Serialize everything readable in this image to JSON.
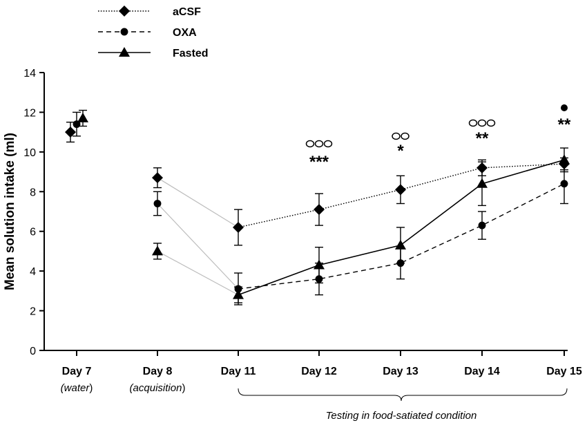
{
  "chart_data": {
    "type": "line",
    "title": "",
    "xlabel": "",
    "ylabel": "Mean solution intake (ml)",
    "ylim": [
      0,
      14
    ],
    "yticks": [
      0,
      2,
      4,
      6,
      8,
      10,
      12,
      14
    ],
    "grid": false,
    "legend_position": "top-left",
    "categories": [
      "Day 7",
      "Day 8",
      "Day 11",
      "Day 12",
      "Day 13",
      "Day 14",
      "Day 15"
    ],
    "category_sublabels": [
      "water",
      "acquisition",
      "",
      "",
      "",
      "",
      ""
    ],
    "series": [
      {
        "name": "aCSF",
        "marker": "diamond",
        "line": "dotted",
        "values": [
          11.0,
          8.7,
          6.2,
          7.1,
          8.1,
          9.2,
          9.4
        ],
        "errors": [
          0.5,
          0.5,
          0.9,
          0.8,
          0.7,
          0.4,
          0.3
        ]
      },
      {
        "name": "OXA",
        "marker": "circle",
        "line": "dashed",
        "values": [
          11.4,
          7.4,
          3.1,
          3.6,
          4.4,
          6.3,
          8.4
        ],
        "errors": [
          0.6,
          0.6,
          0.8,
          0.8,
          0.8,
          0.7,
          1.0
        ]
      },
      {
        "name": "Fasted",
        "marker": "triangle",
        "line": "solid",
        "values": [
          11.7,
          5.0,
          2.8,
          4.3,
          5.3,
          8.4,
          9.6
        ],
        "errors": [
          0.4,
          0.4,
          0.4,
          0.9,
          0.9,
          1.1,
          0.6
        ]
      }
    ],
    "significance": [
      {
        "category": "Day 12",
        "circles": "ooo",
        "stars": "***"
      },
      {
        "category": "Day 13",
        "circles": "oo",
        "stars": "*"
      },
      {
        "category": "Day 14",
        "circles": "ooo",
        "stars": "**"
      },
      {
        "category": "Day 15",
        "circles": "●",
        "stars": "**"
      }
    ],
    "bracket_label": "Testing in food-satiated condition"
  }
}
